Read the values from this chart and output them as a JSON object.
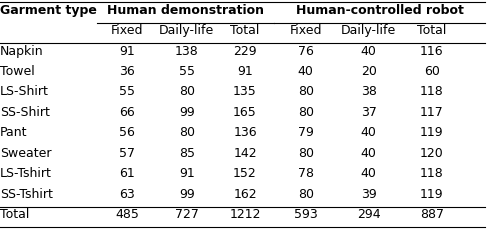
{
  "col_group_labels": [
    "Human demonstration",
    "Human-controlled robot"
  ],
  "col_sub_labels": [
    "Fixed",
    "Daily-life",
    "Total",
    "Fixed",
    "Daily-life",
    "Total"
  ],
  "row_label": "Garment type",
  "rows": [
    [
      "Napkin",
      91,
      138,
      229,
      76,
      40,
      116
    ],
    [
      "Towel",
      36,
      55,
      91,
      40,
      20,
      60
    ],
    [
      "LS-Shirt",
      55,
      80,
      135,
      80,
      38,
      118
    ],
    [
      "SS-Shirt",
      66,
      99,
      165,
      80,
      37,
      117
    ],
    [
      "Pant",
      56,
      80,
      136,
      79,
      40,
      119
    ],
    [
      "Sweater",
      57,
      85,
      142,
      80,
      40,
      120
    ],
    [
      "LS-Tshirt",
      61,
      91,
      152,
      78,
      40,
      118
    ],
    [
      "SS-Tshirt",
      63,
      99,
      162,
      80,
      39,
      119
    ]
  ],
  "total_row": [
    "Total",
    485,
    727,
    1212,
    593,
    294,
    887
  ],
  "bg_color": "#ffffff",
  "header_fontsize": 9,
  "body_fontsize": 9
}
